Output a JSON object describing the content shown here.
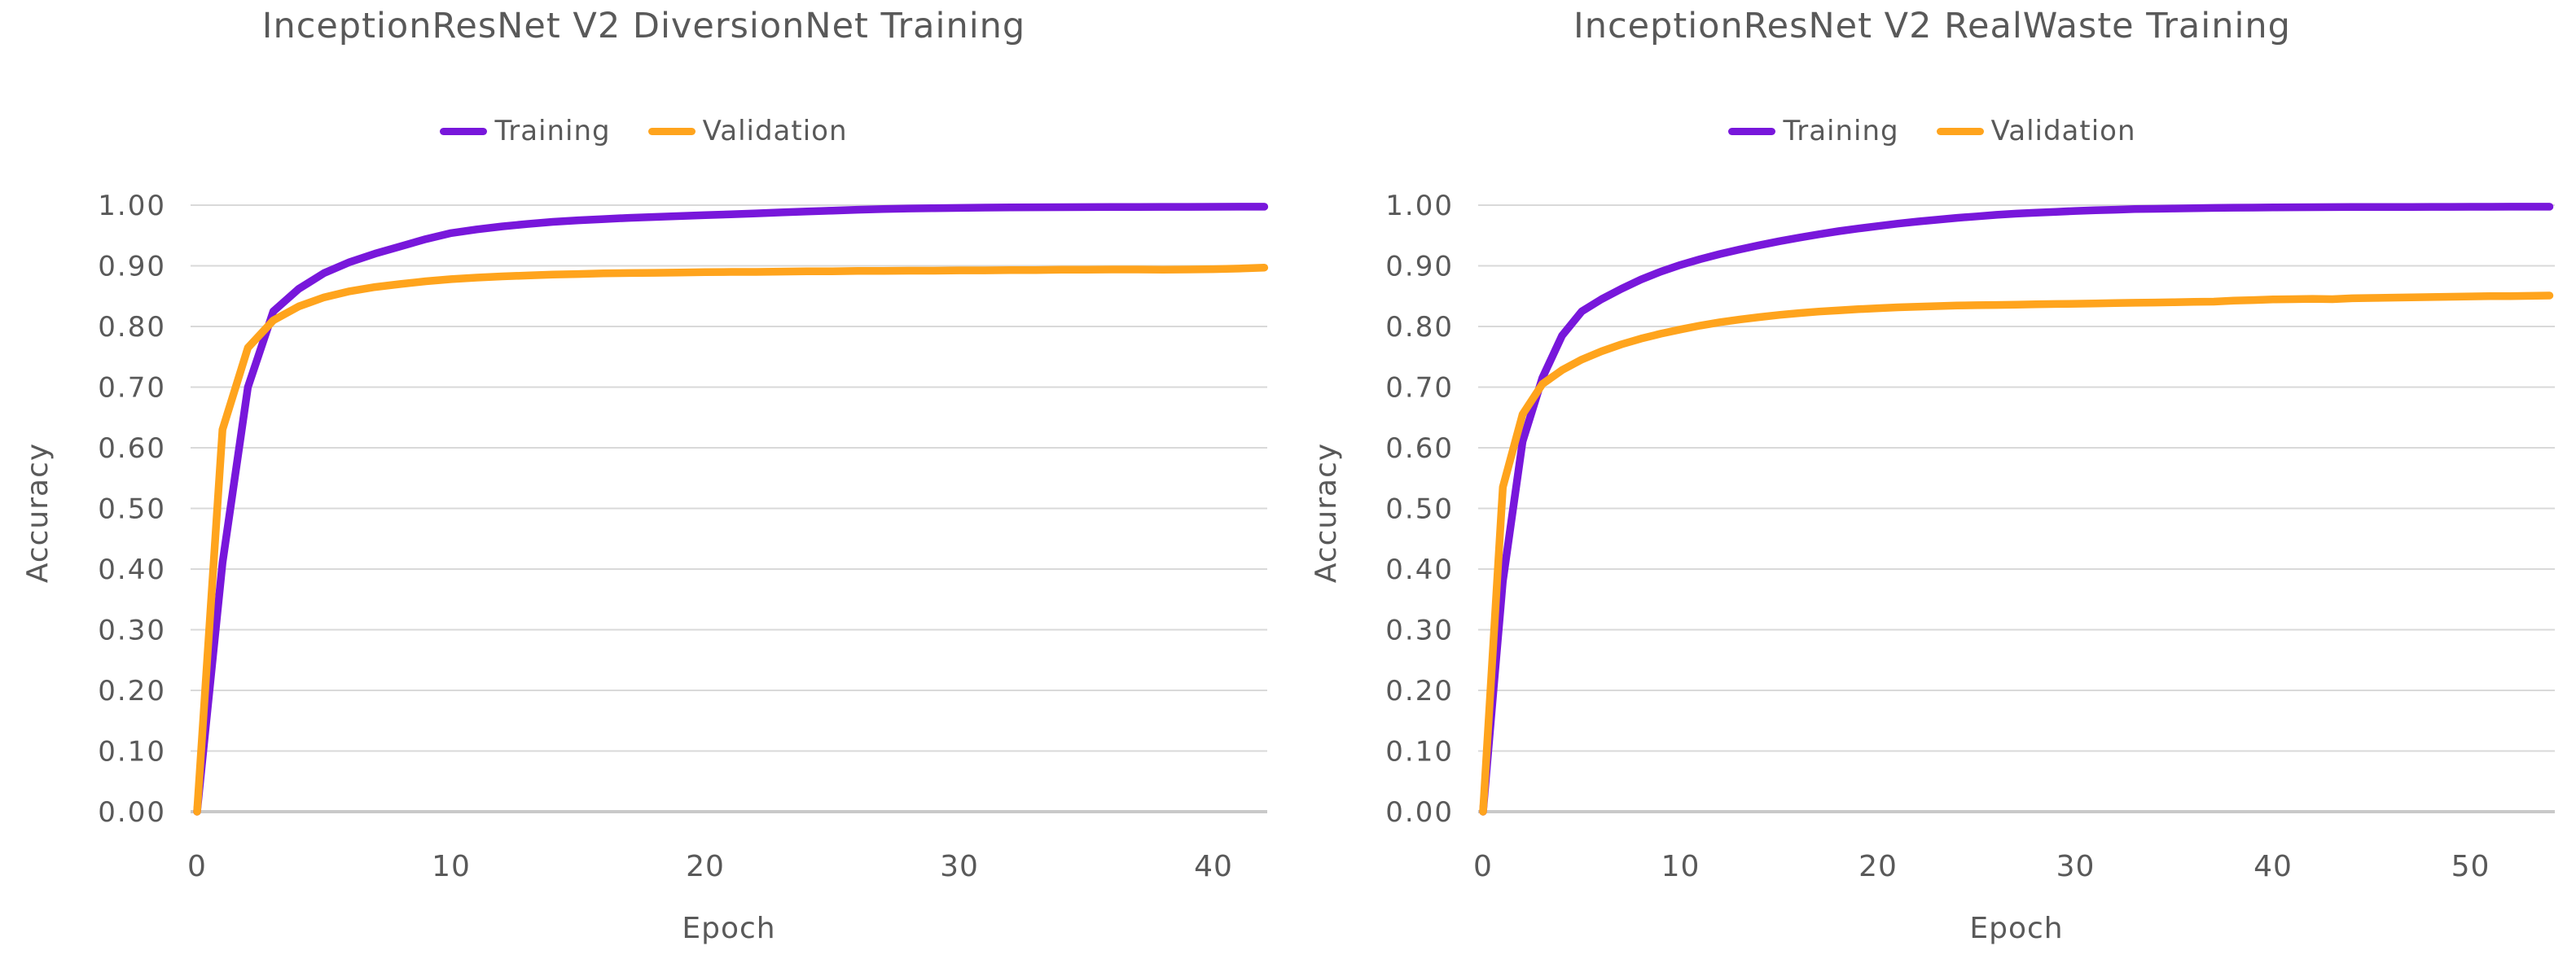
{
  "figure": {
    "background": "#ffffff",
    "text_color": "#595959",
    "gridline_color": "#d9d9d9",
    "axisline_color": "#c9c9c9"
  },
  "chart_data": [
    {
      "type": "line",
      "title": "InceptionResNet V2 DiversionNet Training",
      "xlabel": "Epoch",
      "ylabel": "Accuracy",
      "legend_position": "top",
      "grid": true,
      "xlim": [
        0,
        42
      ],
      "ylim": [
        0,
        1.0
      ],
      "x_ticks": [
        0,
        10,
        20,
        30,
        40
      ],
      "y_ticks": [
        "0.00",
        "0.10",
        "0.20",
        "0.30",
        "0.40",
        "0.50",
        "0.60",
        "0.70",
        "0.80",
        "0.90",
        "1.00"
      ],
      "x": [
        0,
        1,
        2,
        3,
        4,
        5,
        6,
        7,
        8,
        9,
        10,
        11,
        12,
        13,
        14,
        15,
        16,
        17,
        18,
        19,
        20,
        21,
        22,
        23,
        24,
        25,
        26,
        27,
        28,
        29,
        30,
        31,
        32,
        33,
        34,
        35,
        36,
        37,
        38,
        39,
        40,
        41,
        42
      ],
      "series": [
        {
          "name": "Training",
          "color": "#7817db",
          "values": [
            0.0,
            0.41,
            0.7,
            0.825,
            0.862,
            0.888,
            0.906,
            0.92,
            0.932,
            0.944,
            0.954,
            0.96,
            0.965,
            0.969,
            0.9725,
            0.975,
            0.977,
            0.979,
            0.9805,
            0.982,
            0.9835,
            0.985,
            0.9865,
            0.988,
            0.9895,
            0.991,
            0.9925,
            0.9935,
            0.9945,
            0.995,
            0.9955,
            0.996,
            0.9962,
            0.9965,
            0.9967,
            0.9968,
            0.997,
            0.997,
            0.9972,
            0.9972,
            0.9973,
            0.9974,
            0.9975
          ]
        },
        {
          "name": "Validation",
          "color": "#ffa41d",
          "values": [
            0.0,
            0.63,
            0.765,
            0.81,
            0.833,
            0.848,
            0.858,
            0.865,
            0.87,
            0.8745,
            0.878,
            0.8805,
            0.8825,
            0.884,
            0.8855,
            0.8865,
            0.8875,
            0.888,
            0.8885,
            0.889,
            0.8895,
            0.89,
            0.89,
            0.8905,
            0.891,
            0.891,
            0.8915,
            0.8915,
            0.892,
            0.892,
            0.8925,
            0.8925,
            0.893,
            0.893,
            0.8935,
            0.8935,
            0.894,
            0.894,
            0.8935,
            0.894,
            0.8945,
            0.8955,
            0.897
          ]
        }
      ]
    },
    {
      "type": "line",
      "title": "InceptionResNet V2 RealWaste Training",
      "xlabel": "Epoch",
      "ylabel": "Accuracy",
      "legend_position": "top",
      "grid": true,
      "xlim": [
        0,
        54
      ],
      "ylim": [
        0,
        1.0
      ],
      "x_ticks": [
        0,
        10,
        20,
        30,
        40,
        50
      ],
      "y_ticks": [
        "0.00",
        "0.10",
        "0.20",
        "0.30",
        "0.40",
        "0.50",
        "0.60",
        "0.70",
        "0.80",
        "0.90",
        "1.00"
      ],
      "x": [
        0,
        1,
        2,
        3,
        4,
        5,
        6,
        7,
        8,
        9,
        10,
        11,
        12,
        13,
        14,
        15,
        16,
        17,
        18,
        19,
        20,
        21,
        22,
        23,
        24,
        25,
        26,
        27,
        28,
        29,
        30,
        31,
        32,
        33,
        34,
        35,
        36,
        37,
        38,
        39,
        40,
        41,
        42,
        43,
        44,
        45,
        46,
        47,
        48,
        49,
        50,
        51,
        52,
        53,
        54
      ],
      "series": [
        {
          "name": "Training",
          "color": "#7817db",
          "values": [
            0.0,
            0.38,
            0.61,
            0.715,
            0.785,
            0.825,
            0.845,
            0.862,
            0.8775,
            0.8905,
            0.9015,
            0.911,
            0.9195,
            0.927,
            0.934,
            0.9405,
            0.9465,
            0.952,
            0.957,
            0.9615,
            0.9655,
            0.9695,
            0.973,
            0.976,
            0.979,
            0.9815,
            0.984,
            0.986,
            0.9875,
            0.989,
            0.9905,
            0.9915,
            0.9925,
            0.9935,
            0.994,
            0.9945,
            0.995,
            0.9955,
            0.9958,
            0.996,
            0.9962,
            0.9965,
            0.9966,
            0.9968,
            0.9969,
            0.997,
            0.997,
            0.9971,
            0.9972,
            0.9972,
            0.9973,
            0.9973,
            0.9974,
            0.9974,
            0.9975
          ]
        },
        {
          "name": "Validation",
          "color": "#ffa41d",
          "values": [
            0.0,
            0.535,
            0.655,
            0.705,
            0.728,
            0.7455,
            0.759,
            0.7705,
            0.78,
            0.788,
            0.795,
            0.8015,
            0.807,
            0.8115,
            0.8155,
            0.819,
            0.822,
            0.8245,
            0.8265,
            0.8285,
            0.83,
            0.8315,
            0.8325,
            0.8335,
            0.8345,
            0.835,
            0.8355,
            0.836,
            0.8365,
            0.837,
            0.8375,
            0.838,
            0.8385,
            0.839,
            0.8395,
            0.84,
            0.8405,
            0.841,
            0.8425,
            0.8435,
            0.8445,
            0.845,
            0.8455,
            0.845,
            0.8465,
            0.847,
            0.8475,
            0.848,
            0.8485,
            0.849,
            0.8495,
            0.85,
            0.85,
            0.8505,
            0.851
          ]
        }
      ]
    }
  ]
}
